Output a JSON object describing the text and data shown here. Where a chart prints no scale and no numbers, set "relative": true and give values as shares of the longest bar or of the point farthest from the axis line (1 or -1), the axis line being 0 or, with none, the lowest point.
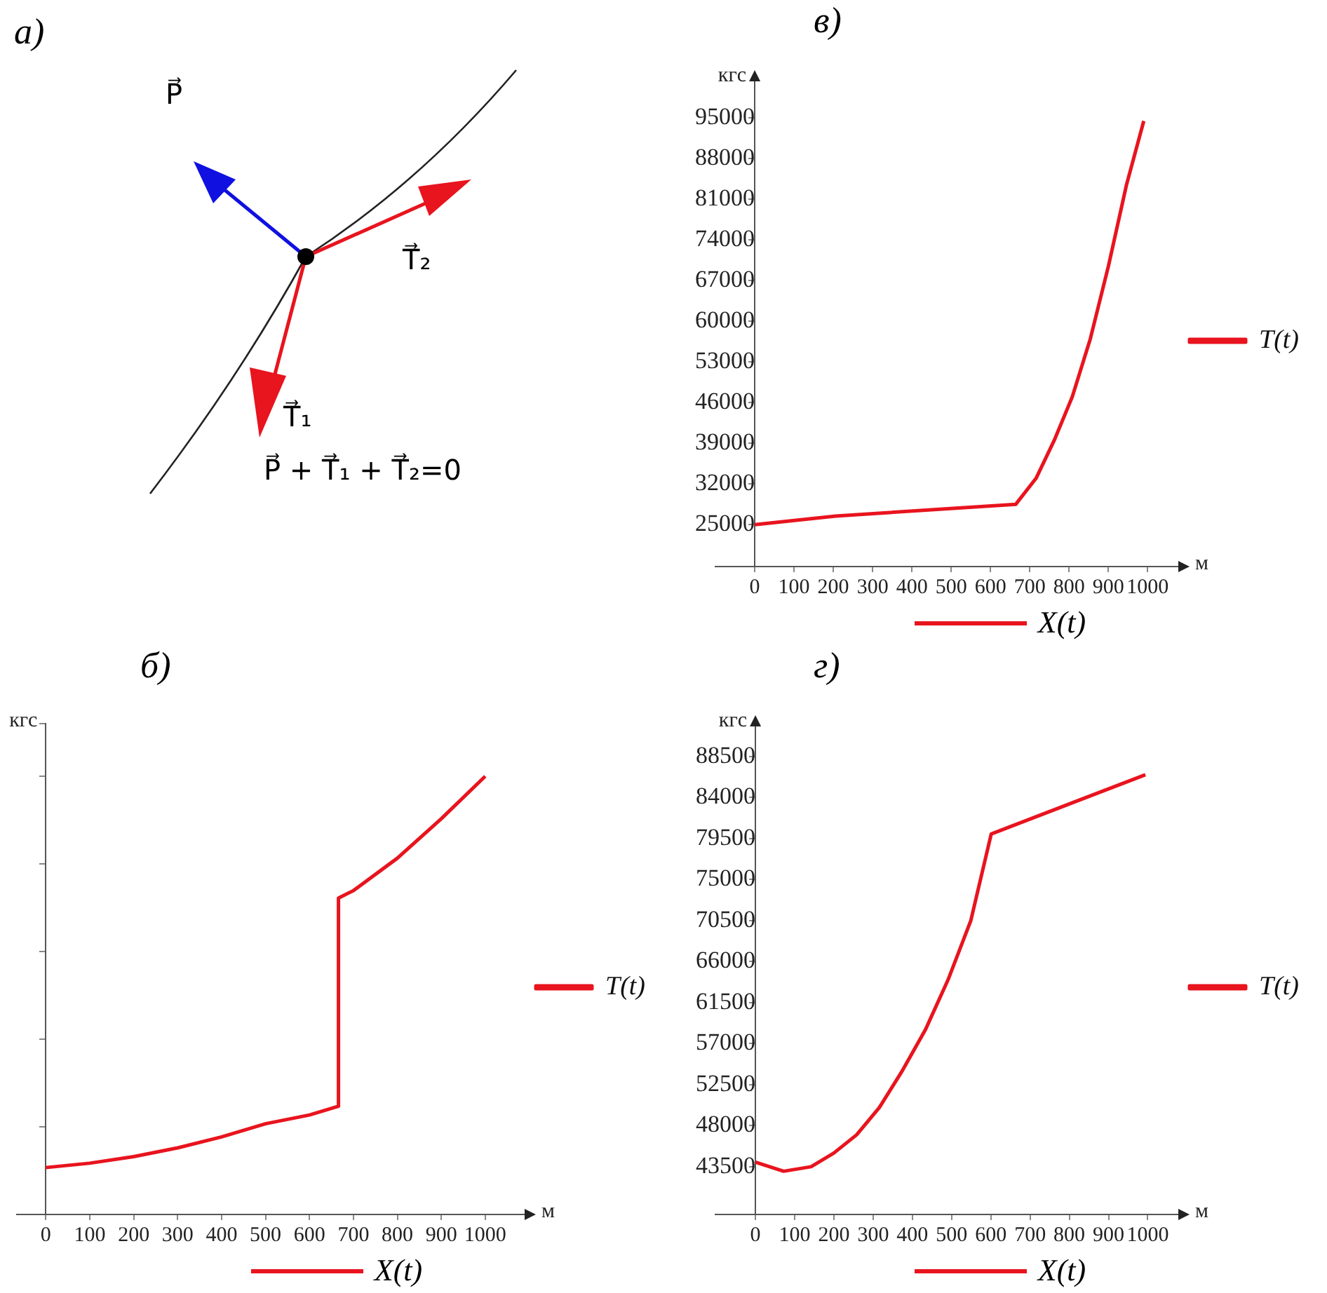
{
  "chart_data": [
    {
      "type": "other",
      "title": "а)",
      "annotations": [
        "P⃗",
        "T⃗₁",
        "T⃗₂",
        "P⃗ + T⃗₁ + T⃗₂=0"
      ]
    },
    {
      "type": "line",
      "title": "в)",
      "ylabel": "кгс",
      "xlabel": "м",
      "annotations": [
        "X(t)"
      ],
      "legend": "right",
      "marker": "none",
      "line_style": "solid",
      "xlim": [
        -100,
        1085
      ],
      "xticks": [
        0,
        100,
        200,
        300,
        400,
        500,
        600,
        700,
        800,
        900,
        1000
      ],
      "ylim": [
        17800,
        101800
      ],
      "yticks": [
        25000,
        32000,
        39000,
        46000,
        53000,
        60000,
        67000,
        74000,
        81000,
        88000,
        95000
      ],
      "series": [
        {
          "name": "T(t)",
          "color": "#e8141e",
          "x": [
            0,
            206,
            664,
            716,
            762,
            808,
            854,
            900,
            946,
            990
          ],
          "values": [
            25000,
            26500,
            28500,
            33000,
            39500,
            47000,
            57000,
            69500,
            83500,
            94500
          ]
        }
      ]
    },
    {
      "type": "line",
      "title": "б)",
      "ylabel": "кгс",
      "xlabel": "м",
      "annotations": [
        "X(t)"
      ],
      "legend": "right",
      "marker": "none",
      "line_style": "solid",
      "relative": true,
      "xlim": [
        -66,
        1096
      ],
      "xticks": [
        0,
        100,
        200,
        300,
        400,
        500,
        600,
        700,
        800,
        900,
        1000
      ],
      "series": [
        {
          "name": "T(t)",
          "color": "#e8141e",
          "x": [
            0,
            100,
            200,
            300,
            400,
            500,
            600,
            666,
            666,
            700,
            800,
            900,
            1000
          ],
          "values": [
            0.107,
            0.117,
            0.132,
            0.152,
            0.177,
            0.207,
            0.227,
            0.247,
            0.722,
            0.739,
            0.813,
            0.903,
            1.0
          ]
        }
      ]
    },
    {
      "type": "line",
      "title": "г)",
      "ylabel": "кгс",
      "xlabel": "м",
      "annotations": [
        "X(t)"
      ],
      "legend": "right",
      "marker": "none",
      "line_style": "solid",
      "xlim": [
        -102,
        1085
      ],
      "xticks": [
        0,
        100,
        200,
        300,
        400,
        500,
        600,
        700,
        800,
        900,
        1000
      ],
      "ylim": [
        38260,
        92100
      ],
      "yticks": [
        43500,
        48000,
        52500,
        57000,
        61500,
        66000,
        70500,
        75000,
        79500,
        84000,
        88500
      ],
      "series": [
        {
          "name": "T(t)",
          "color": "#e8141e",
          "x": [
            0,
            72,
            142,
            200,
            258,
            316,
            374,
            433,
            491,
            549,
            601,
            994
          ],
          "values": [
            44000,
            43000,
            43500,
            45000,
            47000,
            50000,
            54000,
            58500,
            64000,
            70500,
            80000,
            86500
          ]
        }
      ]
    }
  ]
}
